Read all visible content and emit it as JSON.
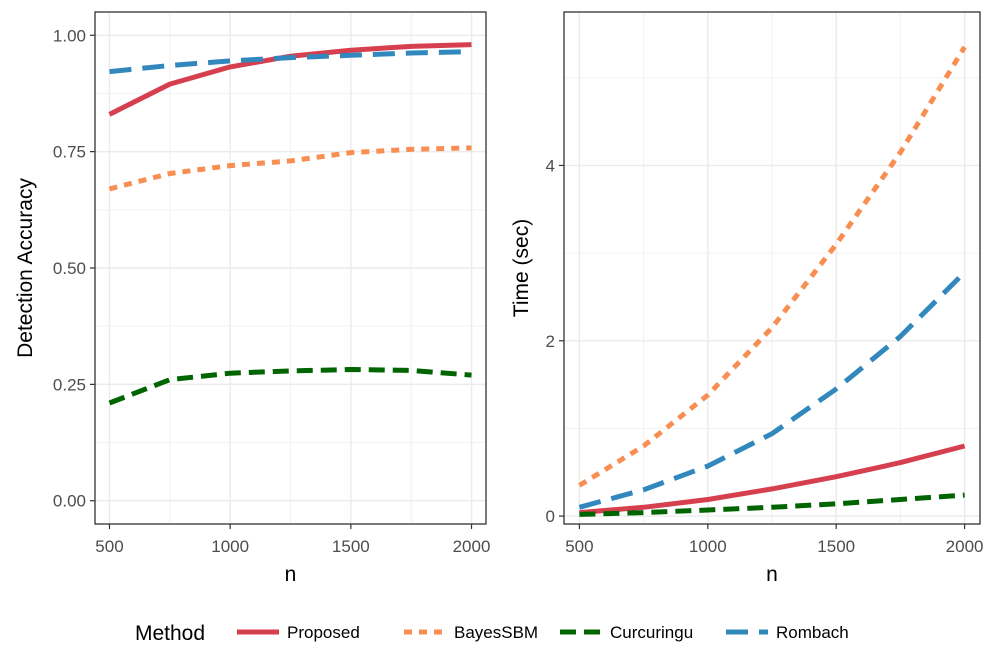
{
  "chart_data": [
    {
      "type": "line",
      "panel": "left",
      "xlabel": "n",
      "ylabel": "Detection Accuracy",
      "xlim": [
        440,
        2060
      ],
      "ylim": [
        -0.05,
        1.05
      ],
      "xticks": [
        500,
        1000,
        1500,
        2000
      ],
      "xtick_labels": [
        "500",
        "1000",
        "1500",
        "2000"
      ],
      "yticks": [
        0.0,
        0.25,
        0.5,
        0.75,
        1.0
      ],
      "ytick_labels": [
        "0.00",
        "0.25",
        "0.50",
        "0.75",
        "1.00"
      ],
      "grid": true,
      "x": [
        500,
        750,
        1000,
        1250,
        1500,
        1750,
        2000
      ],
      "series": [
        {
          "name": "Proposed",
          "values": [
            0.83,
            0.895,
            0.932,
            0.955,
            0.968,
            0.976,
            0.98
          ]
        },
        {
          "name": "BayesSBM",
          "values": [
            0.67,
            0.703,
            0.72,
            0.73,
            0.748,
            0.755,
            0.758
          ]
        },
        {
          "name": "Curcuringu",
          "values": [
            0.21,
            0.26,
            0.274,
            0.279,
            0.282,
            0.28,
            0.27
          ]
        },
        {
          "name": "Rombach",
          "values": [
            0.922,
            0.935,
            0.945,
            0.952,
            0.957,
            0.962,
            0.965
          ]
        }
      ]
    },
    {
      "type": "line",
      "panel": "right",
      "xlabel": "n",
      "ylabel": "Time (sec)",
      "xlim": [
        440,
        2060
      ],
      "ylim": [
        -0.09,
        5.75
      ],
      "xticks": [
        500,
        1000,
        1500,
        2000
      ],
      "xtick_labels": [
        "500",
        "1000",
        "1500",
        "2000"
      ],
      "yticks": [
        0,
        2,
        4
      ],
      "ytick_labels": [
        "0",
        "2",
        "4"
      ],
      "grid": true,
      "x": [
        500,
        750,
        1000,
        1250,
        1500,
        1750,
        2000
      ],
      "series": [
        {
          "name": "Proposed",
          "values": [
            0.04,
            0.1,
            0.19,
            0.31,
            0.45,
            0.61,
            0.8
          ]
        },
        {
          "name": "BayesSBM",
          "values": [
            0.35,
            0.8,
            1.38,
            2.15,
            3.1,
            4.15,
            5.35
          ]
        },
        {
          "name": "Curcuringu",
          "values": [
            0.02,
            0.04,
            0.07,
            0.1,
            0.14,
            0.19,
            0.24
          ]
        },
        {
          "name": "Rombach",
          "values": [
            0.1,
            0.3,
            0.57,
            0.94,
            1.45,
            2.05,
            2.78
          ]
        }
      ]
    }
  ],
  "legend": {
    "title": "Method",
    "position": "bottom",
    "items": [
      {
        "name": "Proposed",
        "color": "#D6404E",
        "dash": "solid"
      },
      {
        "name": "BayesSBM",
        "color": "#F98E52",
        "dash": "dotted"
      },
      {
        "name": "Curcuringu",
        "color": "#006400",
        "dash": "dashed"
      },
      {
        "name": "Rombach",
        "color": "#3288BD",
        "dash": "longdash"
      }
    ]
  }
}
